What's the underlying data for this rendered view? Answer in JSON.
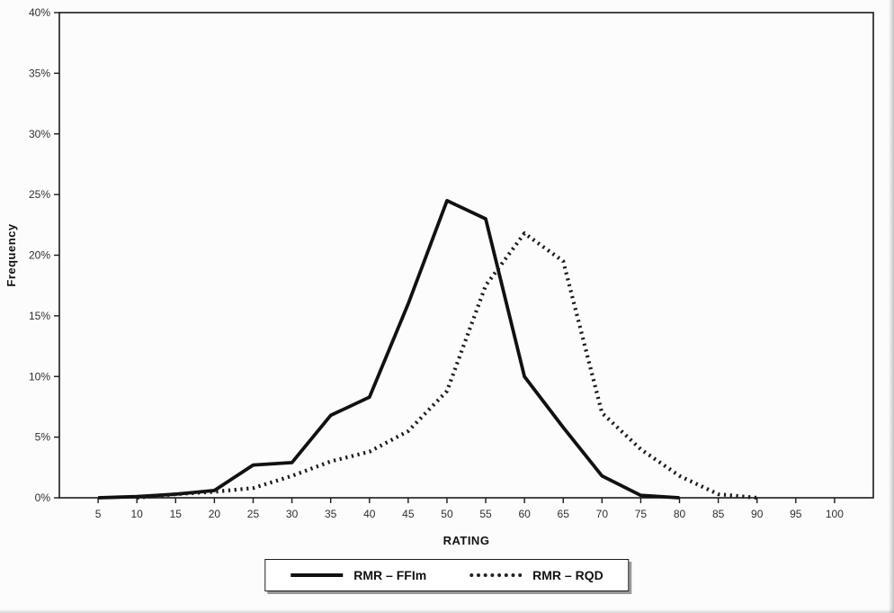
{
  "chart_data": {
    "type": "line",
    "title": "",
    "xlabel": "RATING",
    "ylabel": "Frequency",
    "grid": false,
    "legend_position": "bottom-center",
    "xlim": [
      0,
      105
    ],
    "ylim": [
      0,
      40
    ],
    "x": [
      5,
      10,
      15,
      20,
      25,
      30,
      35,
      40,
      45,
      50,
      55,
      60,
      65,
      70,
      75,
      80,
      85,
      90,
      95,
      100
    ],
    "x_tick_labels": [
      "5",
      "10",
      "15",
      "20",
      "25",
      "30",
      "35",
      "40",
      "45",
      "50",
      "55",
      "60",
      "65",
      "70",
      "75",
      "80",
      "85",
      "90",
      "95",
      "100"
    ],
    "y_ticks": [
      0,
      5,
      10,
      15,
      20,
      25,
      30,
      35,
      40
    ],
    "y_tick_labels": [
      "0%",
      "5%",
      "10%",
      "15%",
      "20%",
      "25%",
      "30%",
      "35%",
      "40%"
    ],
    "series": [
      {
        "name": "RMR – FFIm",
        "style": "solid",
        "color": "#111111",
        "values": [
          0,
          0.1,
          0.3,
          0.6,
          2.7,
          2.9,
          6.8,
          8.3,
          16,
          24.5,
          23,
          10,
          5.8,
          1.8,
          0.2,
          0,
          null,
          null,
          null,
          null
        ]
      },
      {
        "name": "RMR – RQD",
        "style": "dotted",
        "color": "#1a1a1a",
        "values": [
          null,
          0,
          0.3,
          0.5,
          0.8,
          1.8,
          3,
          3.8,
          5.5,
          8.8,
          17.5,
          21.8,
          19.5,
          7,
          4,
          1.8,
          0.3,
          0,
          null,
          null
        ]
      }
    ]
  }
}
